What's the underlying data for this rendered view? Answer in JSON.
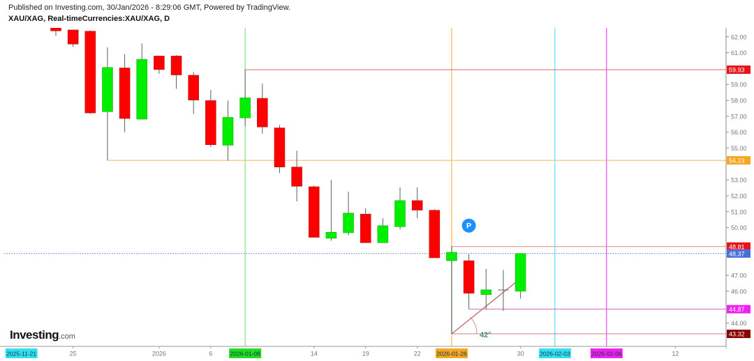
{
  "header": {
    "published": "Published on Investing.com, 30/Jan/2026 - 8:29:06 GMT, Powered by TradingView.",
    "symbol": "XAU/XAG, Real-timeCurrencies:XAU/XAG, D"
  },
  "logo": {
    "brand": "Investing",
    "suffix": ".com"
  },
  "chart_data": {
    "type": "candlestick",
    "title": "XAU/XAG, Real-timeCurrencies:XAU/XAG, D",
    "ylim": [
      43.0,
      62.6
    ],
    "y_ticks": [
      62,
      61,
      59,
      58,
      57,
      56,
      55,
      53,
      52,
      51,
      50,
      47,
      46,
      44
    ],
    "x_ticks": [
      {
        "index": -2,
        "label": "2025-11-21",
        "highlight": "#33e0f0"
      },
      {
        "index": 1,
        "label": "25"
      },
      {
        "index": 6,
        "label": "2026"
      },
      {
        "index": 9,
        "label": "6"
      },
      {
        "index": 11,
        "label": "2026-01-08",
        "highlight": "#22dd22"
      },
      {
        "index": 15,
        "label": "14"
      },
      {
        "index": 18,
        "label": "19"
      },
      {
        "index": 21,
        "label": "22"
      },
      {
        "index": 23,
        "label": "2026-01-26",
        "highlight": "#f5a623"
      },
      {
        "index": 27,
        "label": "30"
      },
      {
        "index": 29,
        "label": "2026-02-03",
        "highlight": "#33e0f0"
      },
      {
        "index": 32,
        "label": "2026-02-06",
        "highlight": "#ee22ee"
      },
      {
        "index": 36,
        "label": "12"
      }
    ],
    "candles": [
      {
        "o": 62.57,
        "h": 62.57,
        "l": 62.06,
        "c": 62.37
      },
      {
        "o": 62.43,
        "h": 62.43,
        "l": 61.36,
        "c": 61.54
      },
      {
        "o": 62.35,
        "h": 62.4,
        "l": 57.15,
        "c": 57.21
      },
      {
        "o": 57.29,
        "h": 61.34,
        "l": 54.23,
        "c": 60.07
      },
      {
        "o": 60.04,
        "h": 60.92,
        "l": 56.0,
        "c": 56.86
      },
      {
        "o": 56.82,
        "h": 61.58,
        "l": 56.8,
        "c": 60.58
      },
      {
        "o": 60.79,
        "h": 60.79,
        "l": 59.67,
        "c": 59.94
      },
      {
        "o": 60.79,
        "h": 60.85,
        "l": 58.72,
        "c": 59.6
      },
      {
        "o": 59.58,
        "h": 59.79,
        "l": 57.15,
        "c": 58.02
      },
      {
        "o": 57.99,
        "h": 58.65,
        "l": 55.06,
        "c": 55.21
      },
      {
        "o": 55.18,
        "h": 57.99,
        "l": 54.21,
        "c": 56.93
      },
      {
        "o": 56.9,
        "h": 59.93,
        "l": 56.38,
        "c": 58.16
      },
      {
        "o": 58.13,
        "h": 59.06,
        "l": 55.91,
        "c": 56.33
      },
      {
        "o": 56.27,
        "h": 56.45,
        "l": 53.43,
        "c": 53.81
      },
      {
        "o": 53.81,
        "h": 54.84,
        "l": 51.65,
        "c": 52.6
      },
      {
        "o": 52.57,
        "h": 52.64,
        "l": 49.39,
        "c": 49.39
      },
      {
        "o": 49.33,
        "h": 53.0,
        "l": 49.17,
        "c": 49.71
      },
      {
        "o": 49.68,
        "h": 52.26,
        "l": 49.52,
        "c": 50.91
      },
      {
        "o": 50.85,
        "h": 51.22,
        "l": 49.05,
        "c": 49.05
      },
      {
        "o": 49.05,
        "h": 50.59,
        "l": 49.05,
        "c": 50.12
      },
      {
        "o": 50.06,
        "h": 52.53,
        "l": 49.89,
        "c": 51.7
      },
      {
        "o": 51.7,
        "h": 52.53,
        "l": 50.59,
        "c": 51.1
      },
      {
        "o": 51.09,
        "h": 51.17,
        "l": 48.1,
        "c": 48.1
      },
      {
        "o": 47.92,
        "h": 48.81,
        "l": 43.32,
        "c": 48.45
      },
      {
        "o": 47.92,
        "h": 48.32,
        "l": 44.87,
        "c": 45.87
      },
      {
        "o": 45.79,
        "h": 47.4,
        "l": 44.88,
        "c": 46.09
      },
      {
        "o": 46.08,
        "h": 47.34,
        "l": 44.76,
        "c": 46.08
      },
      {
        "o": 46.0,
        "h": 48.37,
        "l": 45.54,
        "c": 48.37
      }
    ],
    "colors": {
      "up": "#00ee00",
      "down": "#ff0000",
      "wick": "#556655"
    },
    "horizontal_levels": [
      {
        "value": 59.93,
        "label": "59.93",
        "from_index": 11,
        "color": "#d46a6a",
        "label_bg": "#e8141c"
      },
      {
        "value": 54.23,
        "label": "54.23",
        "from_index": 3,
        "color": "#f5b35a",
        "label_bg": "#f5a623"
      },
      {
        "value": 48.81,
        "label": "48.81",
        "from_index": 23,
        "color": "#e08a8a",
        "label_bg": "#e8141c"
      },
      {
        "value": 48.37,
        "label": "48.37",
        "from_index": -3,
        "color": "#4a6fd8",
        "label_bg": "#4a6fd8",
        "dotted": true
      },
      {
        "value": 44.87,
        "label": "44.87",
        "from_index": 24,
        "color": "#cc66cc",
        "label_bg": "#ee22ee"
      },
      {
        "value": 43.32,
        "label": "43.32",
        "from_index": 23,
        "color": "#c98080",
        "label_bg": "#8b0000"
      }
    ],
    "vertical_markers": [
      {
        "index": 11,
        "color": "#66dd66"
      },
      {
        "index": 23,
        "color": "#f5a623"
      },
      {
        "index": 29,
        "color": "#33e0f0"
      },
      {
        "index": 32,
        "color": "#ee22ee"
      }
    ],
    "trend_line": {
      "from": {
        "index": 23,
        "value": 43.32
      },
      "to": {
        "index": 27,
        "value": 46.8
      },
      "color": "#c47a7a",
      "angle_label": "42°"
    },
    "marker": {
      "index": 24,
      "value": 49.6,
      "label": "P",
      "color": "#1e90ff"
    },
    "grid": false
  }
}
